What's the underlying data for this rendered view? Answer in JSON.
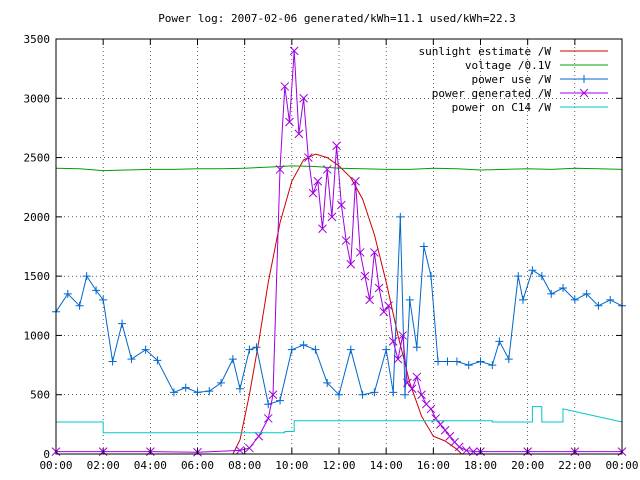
{
  "chart_data": {
    "type": "line",
    "title": "Power log: 2007-02-06 generated/kWh=11.1 used/kWh=22.3",
    "xlabel": "",
    "ylabel": "",
    "xlim": [
      0,
      24
    ],
    "ylim": [
      0,
      3500
    ],
    "x_unit": "hours",
    "x_ticks": [
      "00:00",
      "02:00",
      "04:00",
      "06:00",
      "08:00",
      "10:00",
      "12:00",
      "14:00",
      "16:00",
      "18:00",
      "20:00",
      "22:00",
      "00:00"
    ],
    "y_ticks": [
      "0",
      "500",
      "1000",
      "1500",
      "2000",
      "2500",
      "3000",
      "3500"
    ],
    "grid": true,
    "legend_position": "top-right",
    "series": [
      {
        "name": "sunlight estimate /W",
        "color": "#cc0000",
        "style": "line",
        "x": [
          0,
          7.5,
          7.8,
          8.2,
          8.6,
          9.0,
          9.5,
          10.0,
          10.5,
          11.0,
          11.5,
          12.0,
          12.5,
          13.0,
          13.5,
          14.0,
          14.5,
          15.0,
          15.5,
          16.0,
          16.5,
          17.0,
          17.2,
          24
        ],
        "y": [
          0,
          0,
          120,
          500,
          950,
          1450,
          1950,
          2300,
          2480,
          2530,
          2500,
          2430,
          2330,
          2150,
          1850,
          1450,
          1000,
          600,
          320,
          150,
          110,
          40,
          0,
          0
        ]
      },
      {
        "name": "voltage /0.1V",
        "color": "#00a000",
        "style": "line",
        "x": [
          0,
          1,
          2,
          3,
          4,
          5,
          6,
          7,
          8,
          9,
          10,
          11,
          12,
          13,
          14,
          15,
          16,
          17,
          18,
          19,
          20,
          21,
          22,
          23,
          24
        ],
        "y": [
          2410,
          2405,
          2390,
          2395,
          2400,
          2400,
          2405,
          2405,
          2410,
          2420,
          2430,
          2425,
          2410,
          2405,
          2400,
          2400,
          2410,
          2405,
          2395,
          2400,
          2405,
          2400,
          2410,
          2405,
          2400
        ]
      },
      {
        "name": "power use /W",
        "color": "#0066cc",
        "style": "linepoints",
        "x": [
          0,
          0.5,
          1.0,
          1.3,
          1.7,
          2.0,
          2.4,
          2.8,
          3.2,
          3.8,
          4.3,
          5.0,
          5.5,
          6.0,
          6.5,
          7.0,
          7.5,
          7.8,
          8.2,
          8.5,
          9.0,
          9.5,
          10.0,
          10.5,
          11.0,
          11.5,
          12.0,
          12.5,
          13.0,
          13.5,
          14.0,
          14.3,
          14.6,
          14.8,
          15.0,
          15.3,
          15.6,
          15.9,
          16.2,
          16.6,
          17.0,
          17.5,
          18.0,
          18.5,
          18.8,
          19.2,
          19.6,
          19.8,
          20.2,
          20.6,
          21.0,
          21.5,
          22.0,
          22.5,
          23.0,
          23.5,
          24.0
        ],
        "y": [
          1200,
          1350,
          1250,
          1500,
          1380,
          1300,
          780,
          1100,
          800,
          880,
          790,
          520,
          560,
          520,
          530,
          600,
          800,
          550,
          880,
          900,
          420,
          450,
          880,
          920,
          880,
          600,
          500,
          880,
          500,
          520,
          880,
          520,
          2000,
          500,
          1300,
          900,
          1750,
          1500,
          780,
          780,
          780,
          750,
          780,
          750,
          950,
          800,
          1500,
          1300,
          1550,
          1500,
          1350,
          1400,
          1300,
          1350,
          1250,
          1300,
          1250
        ]
      },
      {
        "name": "power generated /W",
        "color": "#a000e0",
        "style": "linepoints",
        "x": [
          0,
          2,
          4,
          6,
          7.8,
          8.2,
          8.6,
          9.0,
          9.2,
          9.5,
          9.7,
          9.9,
          10.1,
          10.3,
          10.5,
          10.7,
          10.9,
          11.1,
          11.3,
          11.5,
          11.7,
          11.9,
          12.1,
          12.3,
          12.5,
          12.7,
          12.9,
          13.1,
          13.3,
          13.5,
          13.7,
          13.9,
          14.1,
          14.3,
          14.5,
          14.7,
          14.9,
          15.1,
          15.3,
          15.5,
          15.7,
          15.9,
          16.1,
          16.3,
          16.5,
          16.7,
          16.9,
          17.1,
          17.4,
          17.7,
          18,
          20,
          22,
          24
        ],
        "y": [
          20,
          20,
          20,
          15,
          30,
          50,
          150,
          300,
          500,
          2400,
          3100,
          2800,
          3400,
          2700,
          3000,
          2500,
          2200,
          2300,
          1900,
          2400,
          2000,
          2600,
          2100,
          1800,
          1600,
          2300,
          1700,
          1500,
          1300,
          1700,
          1400,
          1200,
          1250,
          950,
          800,
          1000,
          600,
          550,
          650,
          500,
          420,
          380,
          300,
          250,
          200,
          150,
          100,
          60,
          30,
          20,
          20,
          20,
          20,
          20
        ]
      },
      {
        "name": "power on C14 /W",
        "color": "#00c8c8",
        "style": "step",
        "x": [
          0,
          2.0,
          2.0,
          9.7,
          9.7,
          10.1,
          10.1,
          18.5,
          18.5,
          20.2,
          20.2,
          20.6,
          20.6,
          21.5,
          21.5,
          24
        ],
        "y": [
          270,
          270,
          180,
          180,
          190,
          190,
          280,
          280,
          270,
          270,
          400,
          400,
          270,
          270,
          380,
          270
        ]
      }
    ]
  }
}
